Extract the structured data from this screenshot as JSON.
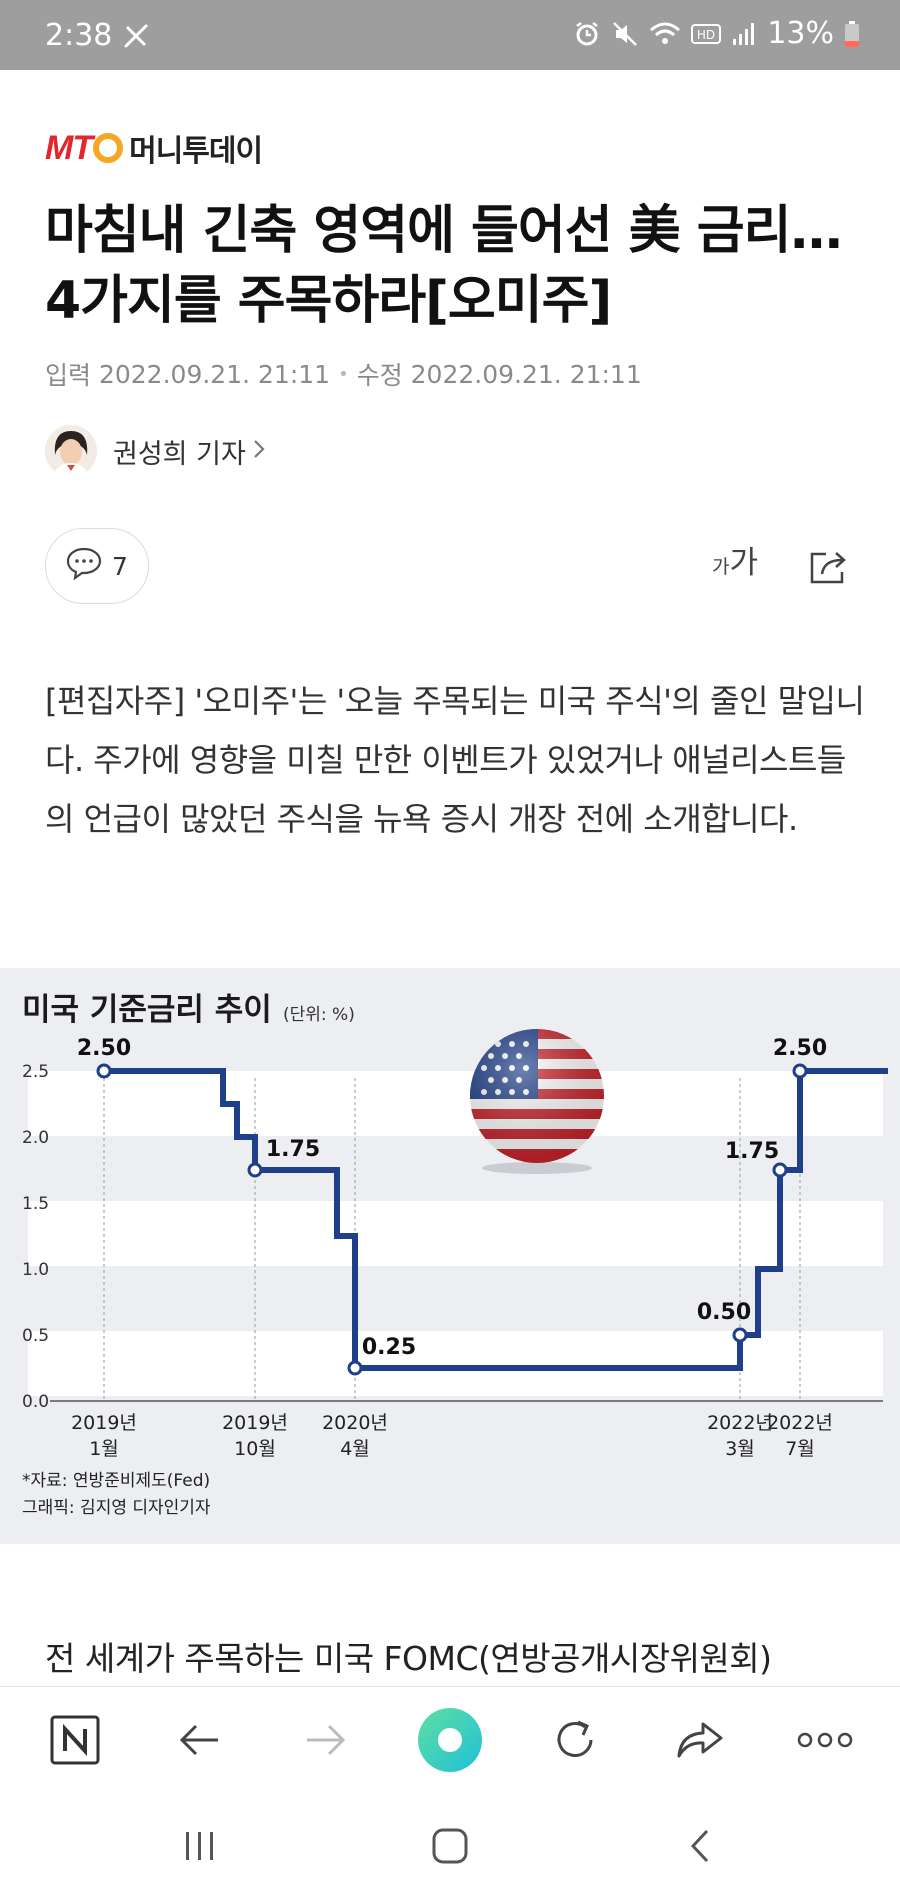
{
  "status": {
    "time": "2:38",
    "battery": "13%"
  },
  "logo": {
    "mark": "MT",
    "name": "머니투데이"
  },
  "article": {
    "title_line1": "마침내 긴축 영역에 들어선 美 금리…",
    "title_line2": "4가지를 주목하라[오미주]",
    "input_label": "입력",
    "input_time": "2022.09.21. 21:11",
    "edit_label": "수정",
    "edit_time": "2022.09.21. 21:11",
    "author": "권성희 기자",
    "comment_count": "7",
    "font_small": "가",
    "font_big": "가",
    "intro": "[편집자주] '오미주'는 '오늘 주목되는 미국 주식'의 줄인 말입니다. 주가에 영향을 미칠 만한 이벤트가 있었거나 애널리스트들의 언급이 많았던 주식을 뉴욕 증시 개장 전에 소개합니다.",
    "body_first_line": "전 세계가 주목하는 미국 FOMC(연방공개시장위원회)"
  },
  "chart_data": {
    "type": "line",
    "title": "미국 기준금리 추이",
    "unit_note": "(단위: %)",
    "ylim": [
      0,
      2.5
    ],
    "yticks": [
      "0.0",
      "0.5",
      "1.0",
      "1.5",
      "2.0",
      "2.5"
    ],
    "step": true,
    "series": [
      {
        "x": [
          "2019-01",
          "2019-07",
          "2019-09",
          "2019-10",
          "2020-03a",
          "2020-03b",
          "2022-03",
          "2022-05",
          "2022-06",
          "2022-07",
          "2022-09"
        ],
        "values": [
          2.5,
          2.25,
          2.0,
          1.75,
          1.25,
          0.25,
          0.5,
          1.0,
          1.75,
          2.5,
          2.5
        ]
      }
    ],
    "highlighted_points": [
      {
        "label": "2.50",
        "value": 2.5
      },
      {
        "label": "1.75",
        "value": 1.75
      },
      {
        "label": "0.25",
        "value": 0.25
      },
      {
        "label": "0.50",
        "value": 0.5
      },
      {
        "label": "1.75",
        "value": 1.75
      },
      {
        "label": "2.50",
        "value": 2.5
      }
    ],
    "x_labels": [
      {
        "year": "2019년",
        "month": "1월"
      },
      {
        "year": "2019년",
        "month": "10월"
      },
      {
        "year": "2020년",
        "month": "4월"
      },
      {
        "year": "2022년",
        "month": "3월"
      },
      {
        "year": "2022년",
        "month": "7월"
      }
    ],
    "source": "*자료: 연방준비제도(Fed)",
    "credit": "그래픽: 김지영 디자인기자",
    "line_color": "#1f3f8a",
    "flag_icon": "us-flag-icon"
  },
  "colors": {
    "status_bar": "#9e9e9e",
    "brand_red": "#e3262e",
    "brand_orange": "#f5a623",
    "chart_bg": "#eceef2",
    "chart_line": "#1f3f8a"
  }
}
